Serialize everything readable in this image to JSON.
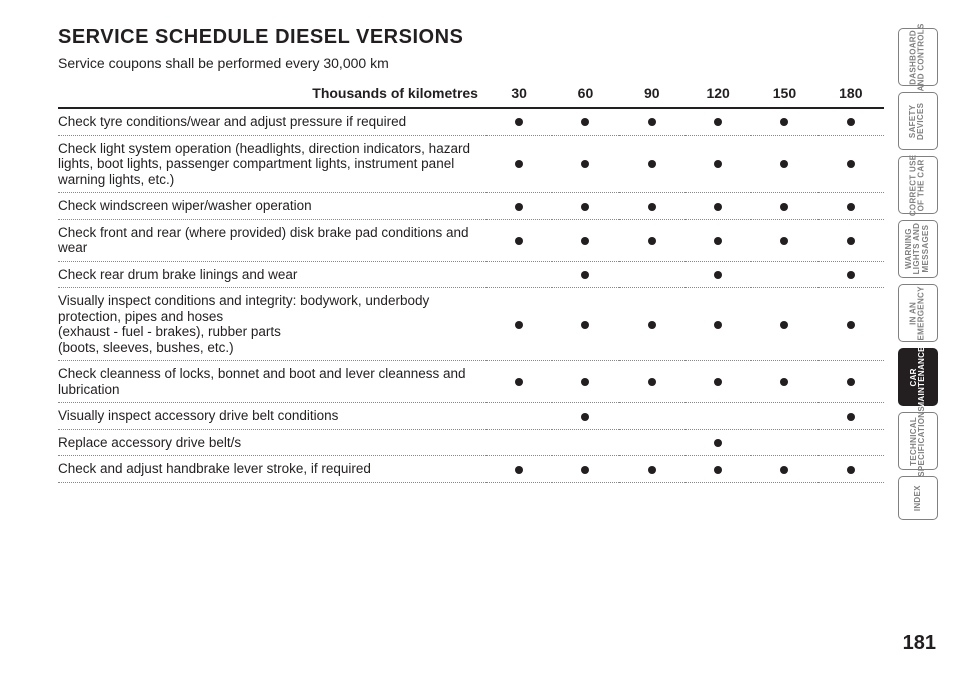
{
  "title": "SERVICE SCHEDULE DIESEL VERSIONS",
  "subtitle": "Service coupons shall be performed every 30,000 km",
  "column_header": "Thousands of kilometres",
  "km_columns": [
    "30",
    "60",
    "90",
    "120",
    "150",
    "180"
  ],
  "rows": [
    {
      "label": "Check tyre conditions/wear and adjust pressure if required",
      "marks": [
        true,
        true,
        true,
        true,
        true,
        true
      ]
    },
    {
      "label": "Check light system operation (headlights, direction indicators, hazard lights, boot lights, passenger compartment lights, instrument panel warning lights, etc.)",
      "marks": [
        true,
        true,
        true,
        true,
        true,
        true
      ]
    },
    {
      "label": "Check windscreen wiper/washer operation",
      "marks": [
        true,
        true,
        true,
        true,
        true,
        true
      ]
    },
    {
      "label": "Check front and rear (where provided) disk brake pad conditions and wear",
      "marks": [
        true,
        true,
        true,
        true,
        true,
        true
      ]
    },
    {
      "label": "Check rear drum brake linings and wear",
      "marks": [
        false,
        true,
        false,
        true,
        false,
        true
      ]
    },
    {
      "label": "Visually inspect conditions and integrity: bodywork, underbody protection, pipes and hoses\n(exhaust - fuel - brakes), rubber parts\n(boots, sleeves, bushes, etc.)",
      "marks": [
        true,
        true,
        true,
        true,
        true,
        true
      ]
    },
    {
      "label": "Check cleanness of locks, bonnet and boot and lever cleanness and lubrication",
      "marks": [
        true,
        true,
        true,
        true,
        true,
        true
      ]
    },
    {
      "label": "Visually inspect accessory drive belt conditions",
      "marks": [
        false,
        true,
        false,
        false,
        false,
        true
      ]
    },
    {
      "label": "Replace accessory drive belt/s",
      "marks": [
        false,
        false,
        false,
        true,
        false,
        false
      ]
    },
    {
      "label": "Check and adjust handbrake lever stroke, if required",
      "marks": [
        true,
        true,
        true,
        true,
        true,
        true
      ]
    }
  ],
  "tabs": [
    {
      "label": "DASHBOARD\nAND CONTROLS",
      "active": false,
      "short": false
    },
    {
      "label": "SAFETY\nDEVICES",
      "active": false,
      "short": false
    },
    {
      "label": "CORRECT USE\nOF THE CAR",
      "active": false,
      "short": false
    },
    {
      "label": "WARNING\nLIGHTS AND\nMESSAGES",
      "active": false,
      "short": false
    },
    {
      "label": "IN AN\nEMERGENCY",
      "active": false,
      "short": false
    },
    {
      "label": "CAR\nMAINTENANCE",
      "active": true,
      "short": false
    },
    {
      "label": "TECHNICAL\nSPECIFICATIONS",
      "active": false,
      "short": false
    },
    {
      "label": "INDEX",
      "active": false,
      "short": true
    }
  ],
  "page_number": "181",
  "colors": {
    "text": "#231f20",
    "tab_border": "#808080",
    "tab_text": "#808080",
    "active_tab_bg": "#231f20",
    "dotted_rule": "#888888",
    "background": "#ffffff"
  },
  "fonts": {
    "title_size_pt": 15,
    "body_size_pt": 10,
    "tab_size_pt": 6,
    "pagenum_size_pt": 15
  }
}
